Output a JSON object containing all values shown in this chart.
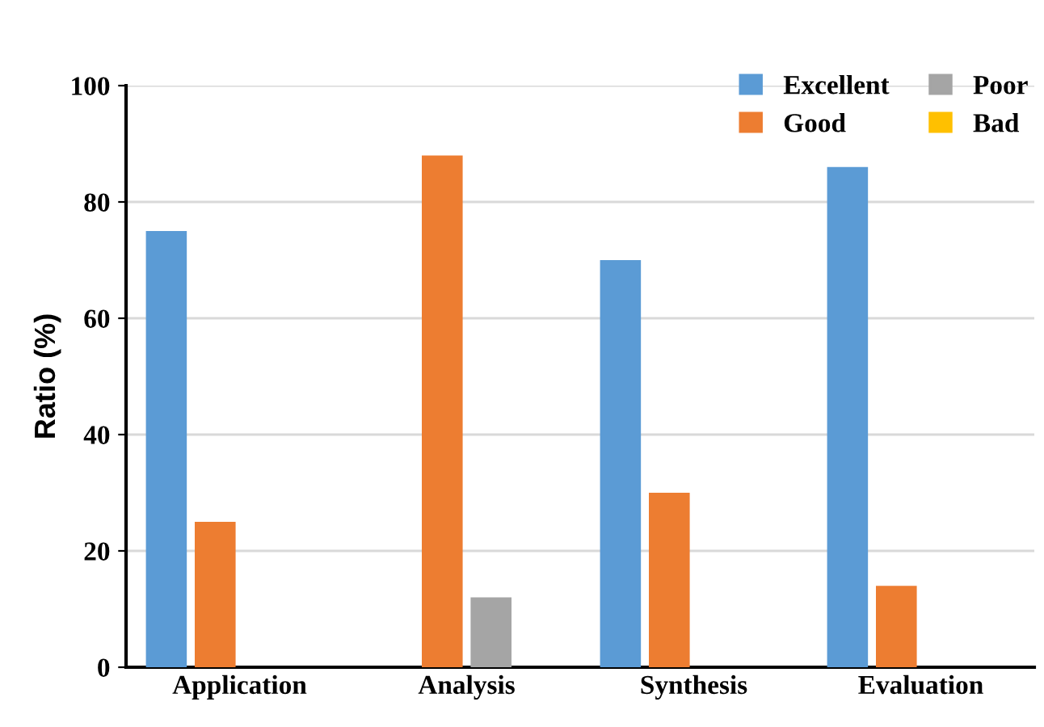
{
  "chart_data": {
    "type": "bar",
    "ylabel": "Ratio (%)",
    "categories": [
      "Application",
      "Analysis",
      "Synthesis",
      "Evaluation"
    ],
    "series": [
      {
        "name": "Excellent",
        "color": "#5b9bd5",
        "values": [
          75,
          0,
          70,
          86
        ]
      },
      {
        "name": "Good",
        "color": "#ed7d31",
        "values": [
          25,
          88,
          30,
          14
        ]
      },
      {
        "name": "Poor",
        "color": "#a5a5a5",
        "values": [
          0,
          12,
          0,
          0
        ]
      },
      {
        "name": "Bad",
        "color": "#ffc000",
        "values": [
          0,
          0,
          0,
          0
        ]
      }
    ],
    "ylim": [
      0,
      100
    ],
    "yticks": [
      0,
      20,
      40,
      60,
      80,
      100
    ],
    "grid": "y",
    "legend": "top right"
  }
}
